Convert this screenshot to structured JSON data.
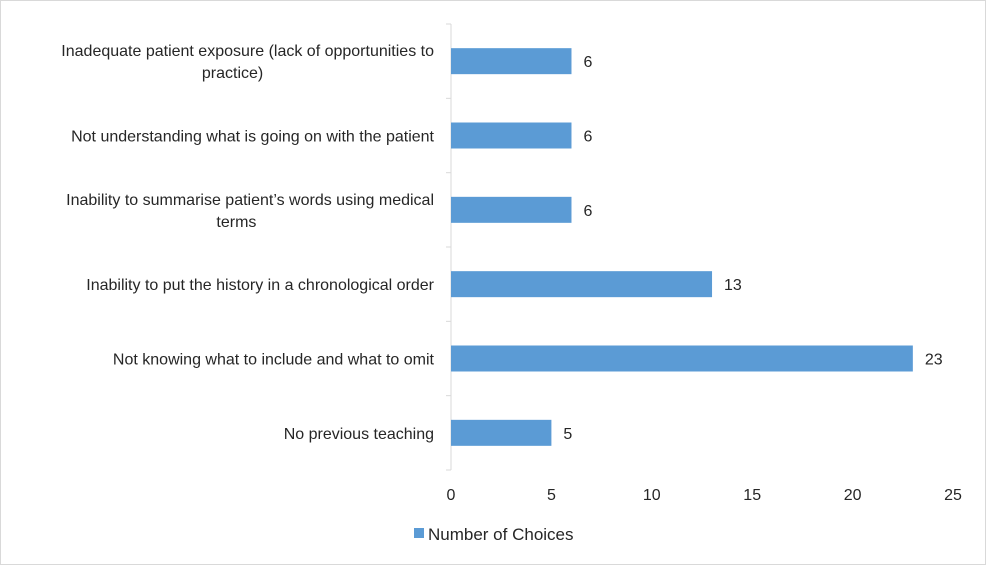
{
  "chart_data": {
    "type": "bar",
    "orientation": "horizontal",
    "categories": [
      [
        "Inadequate patient exposure (lack of opportunities to",
        "practice)"
      ],
      [
        "Not understanding what is going on with the patient"
      ],
      [
        "Inability to summarise patient’s words using medical",
        "terms"
      ],
      [
        "Inability to put the history in a chronological order"
      ],
      [
        "Not knowing what to include and what to omit"
      ],
      [
        "No previous teaching"
      ]
    ],
    "series": [
      {
        "name": "Number of Choices",
        "values": [
          6,
          6,
          6,
          13,
          23,
          5
        ],
        "color": "#5b9bd5"
      }
    ],
    "xlim": [
      0,
      25
    ],
    "xticks": [
      0,
      5,
      10,
      15,
      20,
      25
    ],
    "grid": false,
    "data_labels": true,
    "legend_position": "bottom"
  }
}
